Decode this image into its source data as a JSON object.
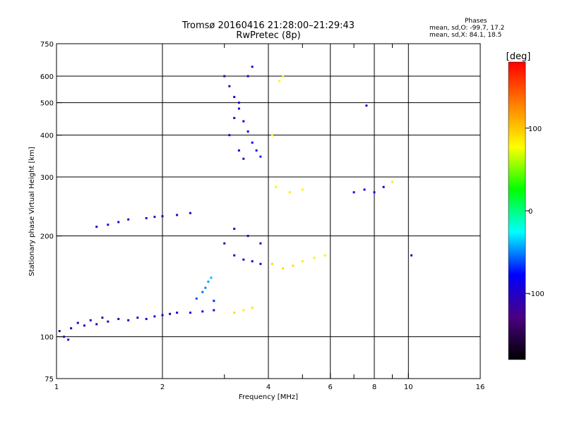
{
  "header": {
    "title": "Tromsø 20160416 21:28:00–21:29:43",
    "subtitle": "RwPretec (8p)",
    "phases_label": "Phases",
    "stat_o": "mean, sd,O: -99.7, 17.2",
    "stat_x": "mean, sd,X:  84.1, 18.5"
  },
  "chart_data": {
    "type": "scatter",
    "xlabel": "Frequency [MHz]",
    "ylabel": "Stationary phase Virtual Height [km]",
    "x_scale": "log",
    "y_scale": "log",
    "xlim": [
      1,
      16
    ],
    "ylim": [
      75,
      750
    ],
    "xticks": [
      1,
      2,
      4,
      6,
      8,
      10,
      16
    ],
    "xminor": [
      3,
      5,
      7,
      9
    ],
    "yticks": [
      75,
      100,
      200,
      300,
      400,
      500,
      600,
      750
    ],
    "grid": true,
    "colorbar": {
      "label": "[deg]",
      "range": [
        -180,
        180
      ],
      "ticks": [
        -100,
        0,
        100
      ],
      "colors": [
        "#000000",
        "#4b0082",
        "#0000ff",
        "#00ffff",
        "#00ff00",
        "#ffff00",
        "#ff8000",
        "#ff0000"
      ]
    },
    "series": [
      {
        "points": [
          [
            1.02,
            104,
            -110
          ],
          [
            1.05,
            100,
            -105
          ],
          [
            1.08,
            98,
            -108
          ],
          [
            1.1,
            106,
            -112
          ],
          [
            1.15,
            110,
            -102
          ],
          [
            1.2,
            108,
            -100
          ],
          [
            1.25,
            112,
            -105
          ],
          [
            1.3,
            109,
            -98
          ],
          [
            1.35,
            114,
            -110
          ],
          [
            1.4,
            111,
            -104
          ],
          [
            1.5,
            113,
            -100
          ],
          [
            1.6,
            112,
            -106
          ],
          [
            1.7,
            114,
            -99
          ],
          [
            1.8,
            113,
            -103
          ],
          [
            1.9,
            115,
            -101
          ],
          [
            2.0,
            116,
            -100
          ],
          [
            2.1,
            117,
            -104
          ],
          [
            2.2,
            118,
            -98
          ],
          [
            2.4,
            118,
            -106
          ],
          [
            2.6,
            119,
            -99
          ],
          [
            2.8,
            120,
            -102
          ]
        ]
      },
      {
        "points": [
          [
            1.3,
            213,
            -105
          ],
          [
            1.4,
            216,
            -100
          ],
          [
            1.5,
            220,
            -98
          ],
          [
            1.6,
            224,
            -102
          ],
          [
            1.8,
            226,
            -100
          ],
          [
            1.9,
            228,
            -104
          ],
          [
            2.0,
            229,
            -99
          ],
          [
            2.2,
            231,
            -101
          ],
          [
            2.4,
            234,
            -103
          ]
        ]
      },
      {
        "points": [
          [
            2.5,
            130,
            -60
          ],
          [
            2.6,
            136,
            -55
          ],
          [
            2.65,
            140,
            -50
          ],
          [
            2.7,
            146,
            -45
          ],
          [
            2.75,
            150,
            -40
          ],
          [
            2.8,
            128,
            -70
          ]
        ]
      },
      {
        "points": [
          [
            3.0,
            600,
            -110
          ],
          [
            3.1,
            560,
            -105
          ],
          [
            3.2,
            520,
            -100
          ],
          [
            3.3,
            480,
            -95
          ],
          [
            3.4,
            440,
            -90
          ],
          [
            3.5,
            410,
            -85
          ],
          [
            3.6,
            380,
            -80
          ],
          [
            3.7,
            360,
            -75
          ],
          [
            3.8,
            345,
            -70
          ],
          [
            3.1,
            400,
            -100
          ],
          [
            3.2,
            450,
            -102
          ],
          [
            3.3,
            500,
            -98
          ],
          [
            3.5,
            600,
            -104
          ],
          [
            3.6,
            640,
            -100
          ],
          [
            3.4,
            340,
            -106
          ],
          [
            3.3,
            360,
            -90
          ]
        ]
      },
      {
        "points": [
          [
            3.0,
            190,
            -110
          ],
          [
            3.2,
            175,
            -105
          ],
          [
            3.4,
            170,
            -100
          ],
          [
            3.6,
            168,
            -102
          ],
          [
            3.8,
            165,
            -98
          ],
          [
            3.2,
            210,
            -104
          ],
          [
            3.5,
            200,
            -100
          ],
          [
            3.8,
            190,
            -96
          ]
        ]
      },
      {
        "points": [
          [
            3.2,
            118,
            90
          ],
          [
            3.4,
            120,
            85
          ],
          [
            3.6,
            122,
            88
          ],
          [
            4.1,
            165,
            92
          ],
          [
            4.4,
            160,
            88
          ],
          [
            4.7,
            163,
            90
          ],
          [
            5.0,
            168,
            86
          ],
          [
            5.4,
            172,
            84
          ],
          [
            5.8,
            175,
            82
          ],
          [
            4.2,
            280,
            80
          ],
          [
            4.6,
            270,
            85
          ],
          [
            5.0,
            275,
            82
          ],
          [
            4.1,
            400,
            78
          ],
          [
            4.3,
            580,
            80
          ],
          [
            4.4,
            600,
            82
          ]
        ]
      },
      {
        "points": [
          [
            7.0,
            270,
            -90
          ],
          [
            7.5,
            275,
            -85
          ],
          [
            8.0,
            270,
            -88
          ],
          [
            8.5,
            280,
            -80
          ],
          [
            9.0,
            290,
            85
          ],
          [
            7.6,
            490,
            -95
          ],
          [
            10.2,
            175,
            -110
          ]
        ]
      }
    ]
  }
}
